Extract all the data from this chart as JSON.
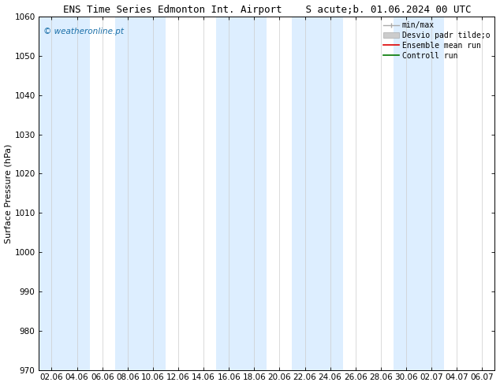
{
  "title_left": "ENS Time Series Edmonton Int. Airport",
  "title_right": "S acute;b. 01.06.2024 00 UTC",
  "ylabel": "Surface Pressure (hPa)",
  "ylim": [
    970,
    1060
  ],
  "yticks": [
    970,
    980,
    990,
    1000,
    1010,
    1020,
    1030,
    1040,
    1050,
    1060
  ],
  "x_labels": [
    "02.06",
    "04.06",
    "06.06",
    "08.06",
    "10.06",
    "12.06",
    "14.06",
    "16.06",
    "18.06",
    "20.06",
    "22.06",
    "24.06",
    "26.06",
    "28.06",
    "30.06",
    "02.07",
    "04.07",
    "06.07"
  ],
  "n_xticks": 18,
  "watermark": "© weatheronline.pt",
  "watermark_color": "#1a6fa8",
  "band_color": "#ddeeff",
  "band_alpha": 1.0,
  "background_color": "#ffffff",
  "legend_items": [
    "min/max",
    "Desvio padr tilde;o",
    "Ensemble mean run",
    "Controll run"
  ],
  "legend_line_colors": [
    "#aaaaaa",
    "#cccccc",
    "#dd0000",
    "#007700"
  ],
  "title_fontsize": 9,
  "axis_label_fontsize": 8,
  "tick_fontsize": 7.5,
  "legend_fontsize": 7,
  "watermark_fontsize": 7.5,
  "band_positions": [
    0,
    3,
    7,
    10,
    14,
    17
  ],
  "band_widths": [
    2,
    2,
    2,
    2,
    2,
    2
  ]
}
